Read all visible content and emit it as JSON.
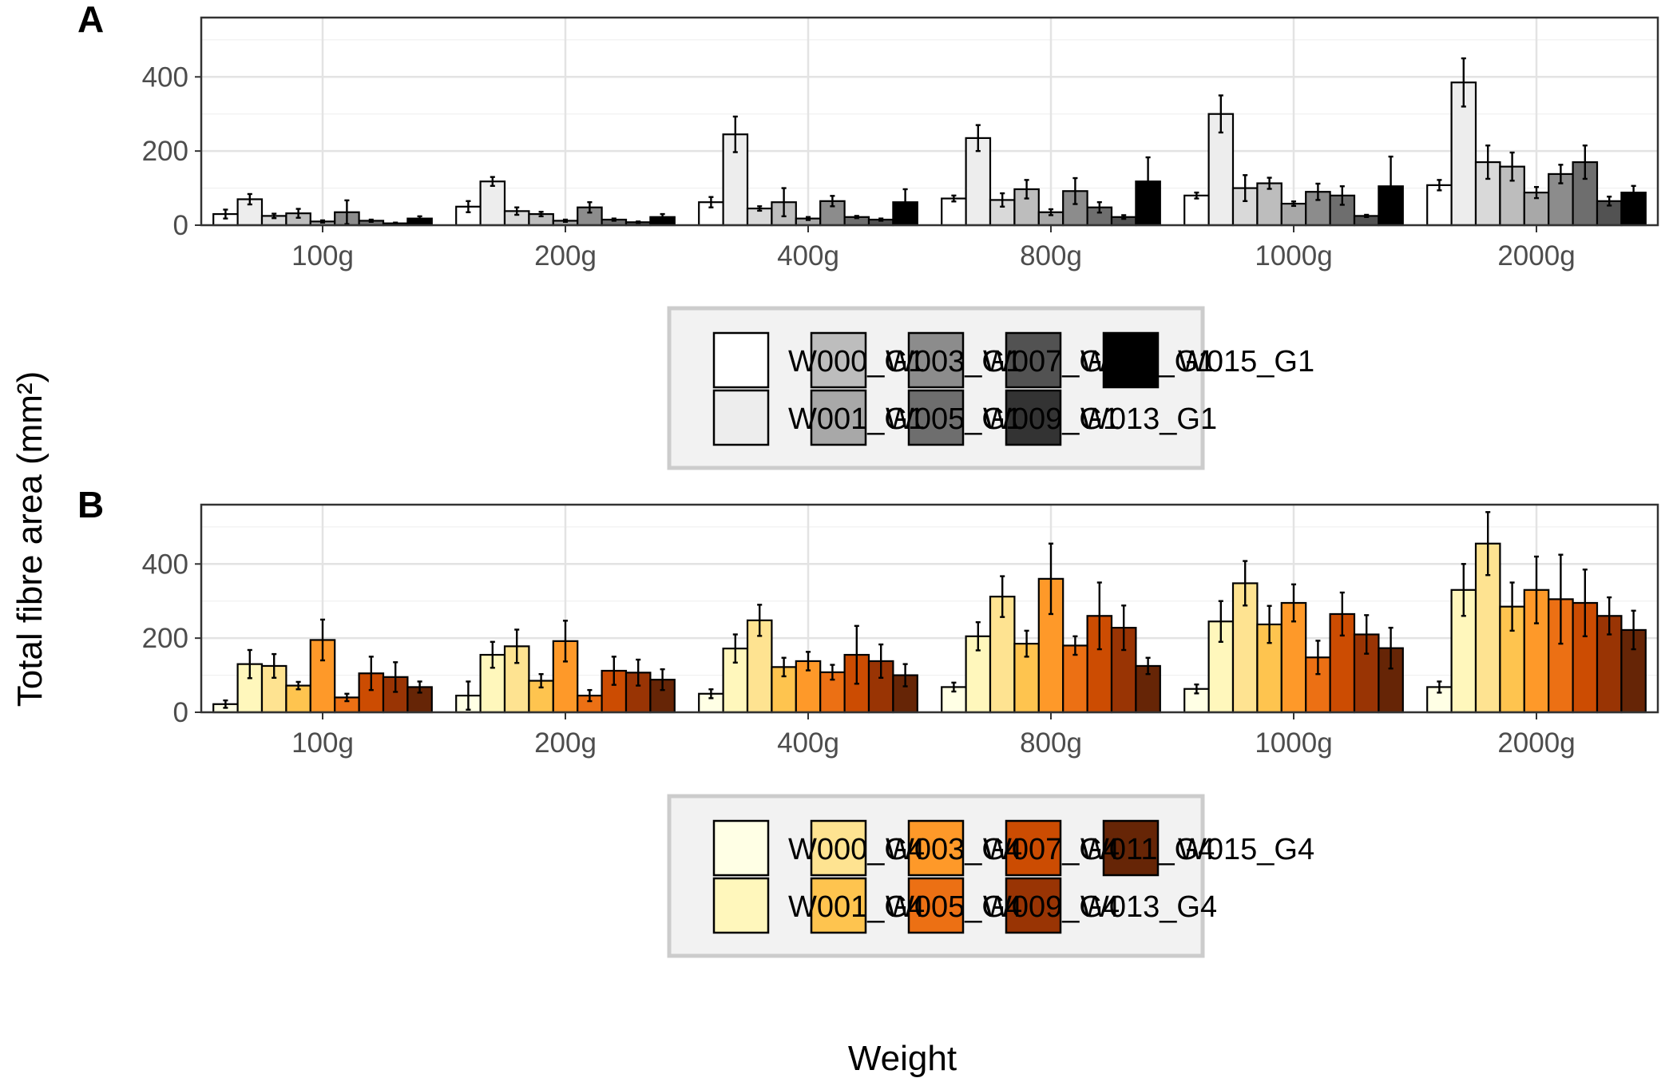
{
  "axis_titles": {
    "x": "Weight",
    "y": "Total fibre area (mm²)"
  },
  "chart_data": [
    {
      "panel": "A",
      "type": "bar",
      "categories": [
        "100g",
        "200g",
        "400g",
        "800g",
        "1000g",
        "2000g"
      ],
      "ylim": [
        0,
        560
      ],
      "yticks": [
        0,
        200,
        400
      ],
      "grid": true,
      "legend_position": "bottom",
      "series": [
        {
          "name": "W000_G1",
          "color": "#FFFFFF",
          "values": [
            30,
            50,
            62,
            72,
            80,
            108
          ],
          "errors": [
            12,
            15,
            14,
            8,
            8,
            14
          ]
        },
        {
          "name": "W001_G1",
          "color": "#EDEDED",
          "values": [
            70,
            118,
            245,
            235,
            300,
            385
          ],
          "errors": [
            14,
            12,
            48,
            35,
            50,
            65
          ]
        },
        {
          "name": "W003_G1",
          "color": "#D9D9D9",
          "values": [
            25,
            38,
            45,
            68,
            100,
            170
          ],
          "errors": [
            6,
            10,
            6,
            18,
            35,
            45
          ]
        },
        {
          "name": "W005_G1",
          "color": "#BDBDBD",
          "values": [
            32,
            30,
            62,
            97,
            113,
            158
          ],
          "errors": [
            12,
            6,
            38,
            25,
            15,
            38
          ]
        },
        {
          "name": "W007_G1",
          "color": "#A8A8A8",
          "values": [
            10,
            12,
            18,
            35,
            58,
            88
          ],
          "errors": [
            3,
            3,
            4,
            8,
            6,
            15
          ]
        },
        {
          "name": "W009_G1",
          "color": "#8C8C8C",
          "values": [
            35,
            48,
            65,
            92,
            90,
            138
          ],
          "errors": [
            32,
            14,
            14,
            35,
            22,
            25
          ]
        },
        {
          "name": "W011_G1",
          "color": "#6E6E6E",
          "values": [
            12,
            15,
            22,
            48,
            80,
            170
          ],
          "errors": [
            3,
            3,
            3,
            14,
            25,
            45
          ]
        },
        {
          "name": "W013_G1",
          "color": "#525252",
          "values": [
            5,
            8,
            15,
            22,
            25,
            65
          ],
          "errors": [
            2,
            2,
            3,
            5,
            3,
            12
          ]
        },
        {
          "name": "W015_G1",
          "color": "#000000",
          "values": [
            18,
            22,
            62,
            118,
            105,
            88
          ],
          "errors": [
            6,
            8,
            35,
            65,
            80,
            18
          ]
        }
      ]
    },
    {
      "panel": "B",
      "type": "bar",
      "categories": [
        "100g",
        "200g",
        "400g",
        "800g",
        "1000g",
        "2000g"
      ],
      "ylim": [
        0,
        560
      ],
      "yticks": [
        0,
        200,
        400
      ],
      "grid": true,
      "legend_position": "bottom",
      "series": [
        {
          "name": "W000_G4",
          "color": "#FFFFE5",
          "values": [
            22,
            45,
            50,
            68,
            63,
            68
          ],
          "errors": [
            10,
            38,
            12,
            12,
            12,
            15
          ]
        },
        {
          "name": "W001_G4",
          "color": "#FFF7BC",
          "values": [
            130,
            155,
            172,
            205,
            245,
            330
          ],
          "errors": [
            38,
            35,
            38,
            38,
            55,
            70
          ]
        },
        {
          "name": "W003_G4",
          "color": "#FEE391",
          "values": [
            125,
            178,
            248,
            312,
            348,
            455
          ],
          "errors": [
            32,
            45,
            42,
            55,
            60,
            85
          ]
        },
        {
          "name": "W005_G4",
          "color": "#FEC44F",
          "values": [
            72,
            85,
            122,
            185,
            237,
            285
          ],
          "errors": [
            10,
            18,
            25,
            35,
            50,
            65
          ]
        },
        {
          "name": "W007_G4",
          "color": "#FE9929",
          "values": [
            195,
            192,
            138,
            360,
            295,
            330
          ],
          "errors": [
            55,
            55,
            25,
            95,
            50,
            90
          ]
        },
        {
          "name": "W009_G4",
          "color": "#EC7014",
          "values": [
            40,
            45,
            108,
            180,
            148,
            305
          ],
          "errors": [
            10,
            15,
            20,
            25,
            45,
            120
          ]
        },
        {
          "name": "W011_G4",
          "color": "#CC4C02",
          "values": [
            105,
            112,
            155,
            260,
            265,
            295
          ],
          "errors": [
            45,
            38,
            78,
            90,
            58,
            90
          ]
        },
        {
          "name": "W013_G4",
          "color": "#993404",
          "values": [
            95,
            107,
            138,
            228,
            210,
            260
          ],
          "errors": [
            40,
            35,
            45,
            60,
            52,
            50
          ]
        },
        {
          "name": "W015_G4",
          "color": "#662506",
          "values": [
            68,
            88,
            100,
            125,
            173,
            222
          ],
          "errors": [
            15,
            28,
            30,
            22,
            55,
            52
          ]
        }
      ]
    }
  ],
  "legends": [
    {
      "rows": [
        {
          "label": "W000_G1",
          "swatches": [
            "#FFFFFF",
            "#BDBDBD",
            "#8C8C8C",
            "#525252",
            "#000000"
          ]
        },
        {
          "label": "W001_G1",
          "swatches": [
            "#EDEDED",
            "#A8A8A8",
            "#6E6E6E",
            "#333333"
          ]
        }
      ],
      "overlapping_labels": [
        {
          "row": 0,
          "texts": [
            "W003_G1",
            "W007_G1",
            "W011_G1",
            "W015_G1"
          ]
        },
        {
          "row": 1,
          "texts": [
            "W005_G1",
            "W009_G1",
            "W013_G1"
          ]
        }
      ]
    },
    {
      "rows": [
        {
          "label": "W000_G4",
          "swatches": [
            "#FFFFE5",
            "#FEE391",
            "#FE9929",
            "#CC4C02",
            "#662506"
          ]
        },
        {
          "label": "W001_G4",
          "swatches": [
            "#FFF7BC",
            "#FEC44F",
            "#EC7014",
            "#993404"
          ]
        }
      ],
      "overlapping_labels": [
        {
          "row": 0,
          "texts": [
            "W003_G4",
            "W007_G4",
            "W011_G4",
            "W015_G4"
          ]
        },
        {
          "row": 1,
          "texts": [
            "W005_G4",
            "W009_G4",
            "W013_G4"
          ]
        }
      ]
    }
  ]
}
